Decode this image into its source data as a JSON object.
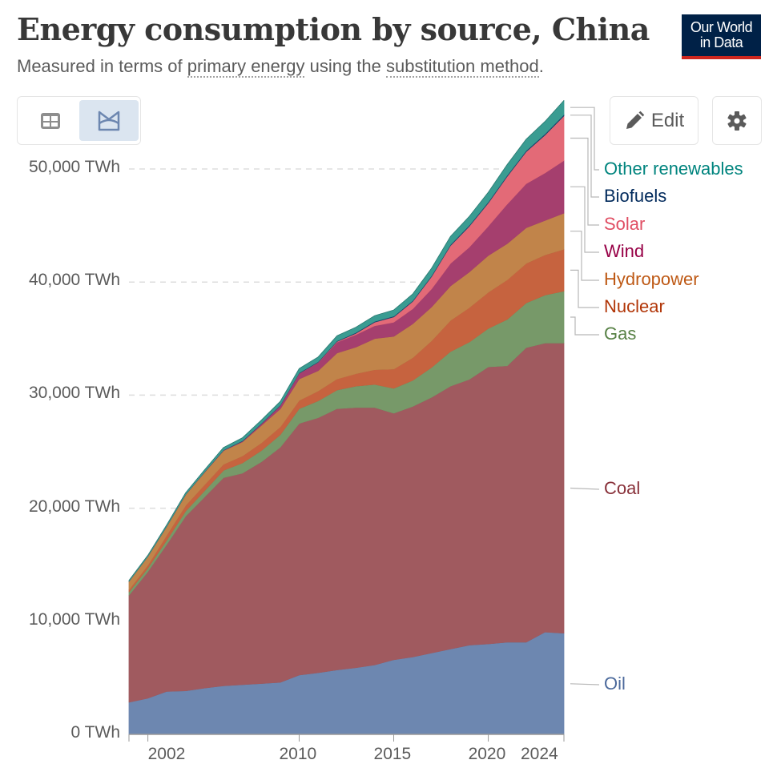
{
  "header": {
    "title": "Energy consumption by source, China",
    "subtitle_parts": [
      "Measured in terms of ",
      "primary energy",
      " using the ",
      "substitution method",
      "."
    ],
    "logo_line1": "Our World",
    "logo_line2": "in Data"
  },
  "toolbar": {
    "table_view_icon": "table-icon",
    "chart_view_icon": "area-chart-icon",
    "edit_label": "Edit",
    "edit_icon": "pencil-icon",
    "settings_icon": "gear-icon"
  },
  "chart_data": {
    "type": "area",
    "stacked": true,
    "title": "Energy consumption by source, China",
    "subtitle": "Measured in terms of primary energy using the substitution method.",
    "unit": "TWh",
    "ylim": [
      0,
      50000
    ],
    "yticks": [
      0,
      10000,
      20000,
      30000,
      40000,
      50000
    ],
    "ytick_labels": [
      "0 TWh",
      "10,000 TWh",
      "20,000 TWh",
      "30,000 TWh",
      "40,000 TWh",
      "50,000 TWh"
    ],
    "xlim": [
      2001,
      2024
    ],
    "xticks": [
      2002,
      2010,
      2015,
      2020,
      2024
    ],
    "xtick_labels": [
      "2002",
      "2010",
      "2015",
      "2020",
      "2024"
    ],
    "grid": "horizontal-dashed",
    "legend": "right-inline",
    "x": [
      2001,
      2002,
      2003,
      2004,
      2005,
      2006,
      2007,
      2008,
      2009,
      2010,
      2011,
      2012,
      2013,
      2014,
      2015,
      2016,
      2017,
      2018,
      2019,
      2020,
      2021,
      2022,
      2023,
      2024
    ],
    "series": [
      {
        "name": "Oil",
        "color": "#6d87b0",
        "label_color": "#4c6a9c",
        "values": [
          2850,
          3200,
          3800,
          3850,
          4100,
          4300,
          4400,
          4500,
          4600,
          5250,
          5450,
          5700,
          5900,
          6150,
          6600,
          6850,
          7200,
          7550,
          7900,
          8000,
          8150,
          8150,
          9050,
          8950
        ]
      },
      {
        "name": "Coal",
        "color": "#a05a5f",
        "label_color": "#883039",
        "values": [
          9450,
          11200,
          13000,
          15450,
          16900,
          18400,
          18700,
          19600,
          20800,
          22250,
          22550,
          23100,
          23000,
          22750,
          21800,
          22150,
          22600,
          23250,
          23500,
          24500,
          24450,
          26050,
          25550,
          25650
        ]
      },
      {
        "name": "Gas",
        "color": "#779969",
        "label_color": "#578145",
        "values": [
          300,
          320,
          380,
          450,
          550,
          650,
          900,
          1000,
          1100,
          1300,
          1500,
          1650,
          1900,
          2050,
          2200,
          2300,
          2650,
          3050,
          3300,
          3400,
          4100,
          3950,
          4250,
          4600
        ]
      },
      {
        "name": "Nuclear",
        "color": "#c6633f",
        "label_color": "#b13507",
        "values": [
          180,
          250,
          430,
          500,
          530,
          540,
          620,
          670,
          690,
          730,
          860,
          980,
          1100,
          1300,
          1700,
          2000,
          2350,
          2750,
          3050,
          3200,
          3500,
          3500,
          3550,
          3700
        ]
      },
      {
        "name": "Hydropower",
        "color": "#c1844a",
        "label_color": "#be5915",
        "values": [
          750,
          770,
          790,
          960,
          1100,
          1200,
          1250,
          1550,
          1600,
          1900,
          1800,
          2300,
          2350,
          2760,
          2900,
          3000,
          3000,
          3050,
          3150,
          3250,
          3200,
          3150,
          3050,
          3200
        ]
      },
      {
        "name": "Wind",
        "color": "#a53f6e",
        "label_color": "#970046",
        "values": [
          5,
          5,
          10,
          10,
          20,
          30,
          60,
          150,
          290,
          490,
          720,
          960,
          1100,
          1130,
          1250,
          1330,
          1600,
          1990,
          2200,
          2600,
          3500,
          3900,
          4200,
          4650
        ]
      },
      {
        "name": "Solar",
        "color": "#e36a77",
        "label_color": "#e04e63",
        "values": [
          0,
          0,
          0,
          0,
          0,
          0,
          0,
          0,
          5,
          10,
          25,
          55,
          120,
          320,
          460,
          650,
          1080,
          1580,
          1850,
          2050,
          2450,
          2820,
          3350,
          3950
        ]
      },
      {
        "name": "Biofuels",
        "color": "#18446e",
        "label_color": "#00295b",
        "values": [
          0,
          0,
          10,
          15,
          20,
          30,
          40,
          40,
          45,
          50,
          55,
          60,
          65,
          70,
          75,
          80,
          85,
          90,
          95,
          95,
          100,
          105,
          110,
          115
        ]
      },
      {
        "name": "Other renewables",
        "color": "#3a9c92",
        "label_color": "#00847e",
        "values": [
          80,
          100,
          120,
          140,
          180,
          220,
          260,
          290,
          320,
          370,
          410,
          440,
          470,
          500,
          540,
          580,
          650,
          720,
          780,
          850,
          950,
          1000,
          1100,
          1250
        ]
      }
    ]
  },
  "legend_order_top_to_bottom": [
    "Other renewables",
    "Biofuels",
    "Solar",
    "Wind",
    "Hydropower",
    "Nuclear",
    "Gas",
    "Coal",
    "Oil"
  ]
}
